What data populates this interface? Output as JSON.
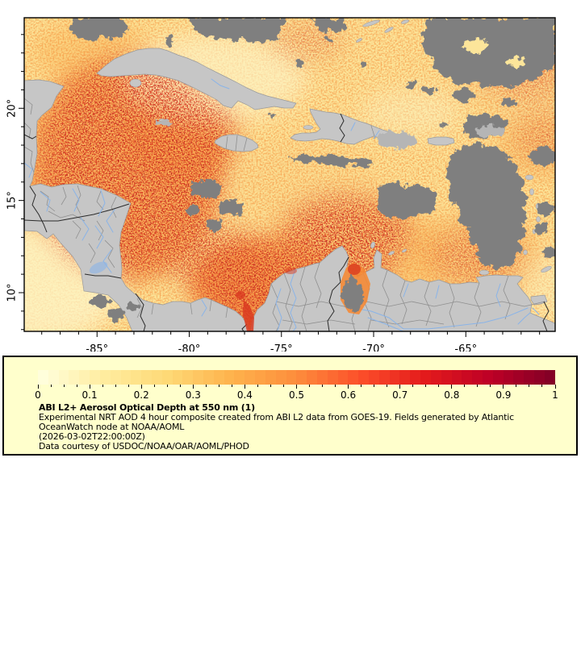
{
  "colors": {
    "legend_bg": "#ffffcc",
    "land": "#c6c6c6",
    "coast": "#9a9a9a",
    "cloud": "#7f7f7f",
    "cloud_light": "#b5b5b5",
    "ocean_base": "#fce59a",
    "ocean_pale": "#fdf5c8",
    "field_orange": "#f9a84e",
    "field_deep": "#f78f38",
    "field_amber": "#fbc368",
    "field_light": "#fcd98e",
    "speck_orange": "#f58a35",
    "speck_red": "#d93a20",
    "speck_dark": "#a50f20",
    "border_minor": "#8f8f8f",
    "border_major": "#2b2b2b",
    "river": "#8ab4e8",
    "frame": "#000000"
  },
  "map": {
    "x_axis": {
      "major_ticks": [
        {
          "value": -85,
          "label": "-85°"
        },
        {
          "value": -80,
          "label": "-80°"
        },
        {
          "value": -75,
          "label": "-75°"
        },
        {
          "value": -70,
          "label": "-70°"
        },
        {
          "value": -65,
          "label": "-65°"
        }
      ],
      "minor_from": -88,
      "minor_to": -61
    },
    "y_axis": {
      "major_ticks": [
        {
          "value": 20,
          "label": "20°"
        },
        {
          "value": 15,
          "label": "15°"
        },
        {
          "value": 10,
          "label": "10°"
        }
      ],
      "minor_from": 8,
      "minor_to": 24
    }
  },
  "legend": {
    "colorbar": {
      "tick_labels": [
        "0",
        "0.1",
        "0.2",
        "0.3",
        "0.4",
        "0.5",
        "0.6",
        "0.7",
        "0.8",
        "0.9",
        "1"
      ],
      "stops": [
        "#ffffe0",
        "#ffeda0",
        "#fed976",
        "#feb24c",
        "#fd8d3c",
        "#fc4e2a",
        "#e31a1c",
        "#bd0026",
        "#800026"
      ],
      "segments": 50
    },
    "title": "ABI L2+ Aerosol Optical Depth at 550 nm (1)",
    "desc_lines": [
      "Experimental NRT AOD 4 hour composite created from ABI L2 data from GOES-19. Fields generated by Atlantic",
      "OceanWatch node at NOAA/AOML",
      "(2026-03-02T22:00:00Z)",
      "Data courtesy of USDOC/NOAA/OAR/AOML/PHOD"
    ]
  }
}
